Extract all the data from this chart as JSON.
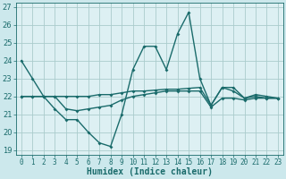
{
  "title": "",
  "xlabel": "Humidex (Indice chaleur)",
  "background_color": "#cce8ec",
  "plot_bg_color": "#ddf0f3",
  "grid_color": "#aacccc",
  "line_color": "#1a6b6b",
  "x_values": [
    0,
    1,
    2,
    3,
    4,
    5,
    6,
    7,
    8,
    9,
    10,
    11,
    12,
    13,
    14,
    15,
    16,
    17,
    18,
    19,
    20,
    21,
    22,
    23
  ],
  "line1": [
    24.0,
    23.0,
    22.0,
    21.3,
    20.7,
    20.7,
    20.0,
    19.4,
    19.2,
    21.0,
    23.5,
    24.8,
    24.8,
    23.5,
    25.5,
    26.7,
    23.0,
    21.5,
    22.5,
    22.5,
    21.9,
    22.1,
    22.0,
    21.9
  ],
  "line2": [
    22.0,
    22.0,
    22.0,
    22.0,
    22.0,
    22.0,
    22.0,
    22.1,
    22.1,
    22.2,
    22.3,
    22.3,
    22.35,
    22.4,
    22.4,
    22.45,
    22.5,
    21.5,
    22.5,
    22.3,
    21.9,
    22.0,
    21.9,
    21.9
  ],
  "line3": [
    22.0,
    22.0,
    22.0,
    22.0,
    21.3,
    21.2,
    21.3,
    21.4,
    21.5,
    21.8,
    22.0,
    22.1,
    22.2,
    22.3,
    22.3,
    22.3,
    22.3,
    21.4,
    21.9,
    21.9,
    21.8,
    21.9,
    21.9,
    21.9
  ],
  "ylim": [
    18.75,
    27.25
  ],
  "yticks": [
    19,
    20,
    21,
    22,
    23,
    24,
    25,
    26,
    27
  ],
  "xlim": [
    -0.5,
    23.5
  ],
  "xticks": [
    0,
    1,
    2,
    3,
    4,
    5,
    6,
    7,
    8,
    9,
    10,
    11,
    12,
    13,
    14,
    15,
    16,
    17,
    18,
    19,
    20,
    21,
    22,
    23
  ],
  "xlabel_fontsize": 7,
  "tick_fontsize": 5.5,
  "line_width": 1.0,
  "marker_size": 2.0
}
